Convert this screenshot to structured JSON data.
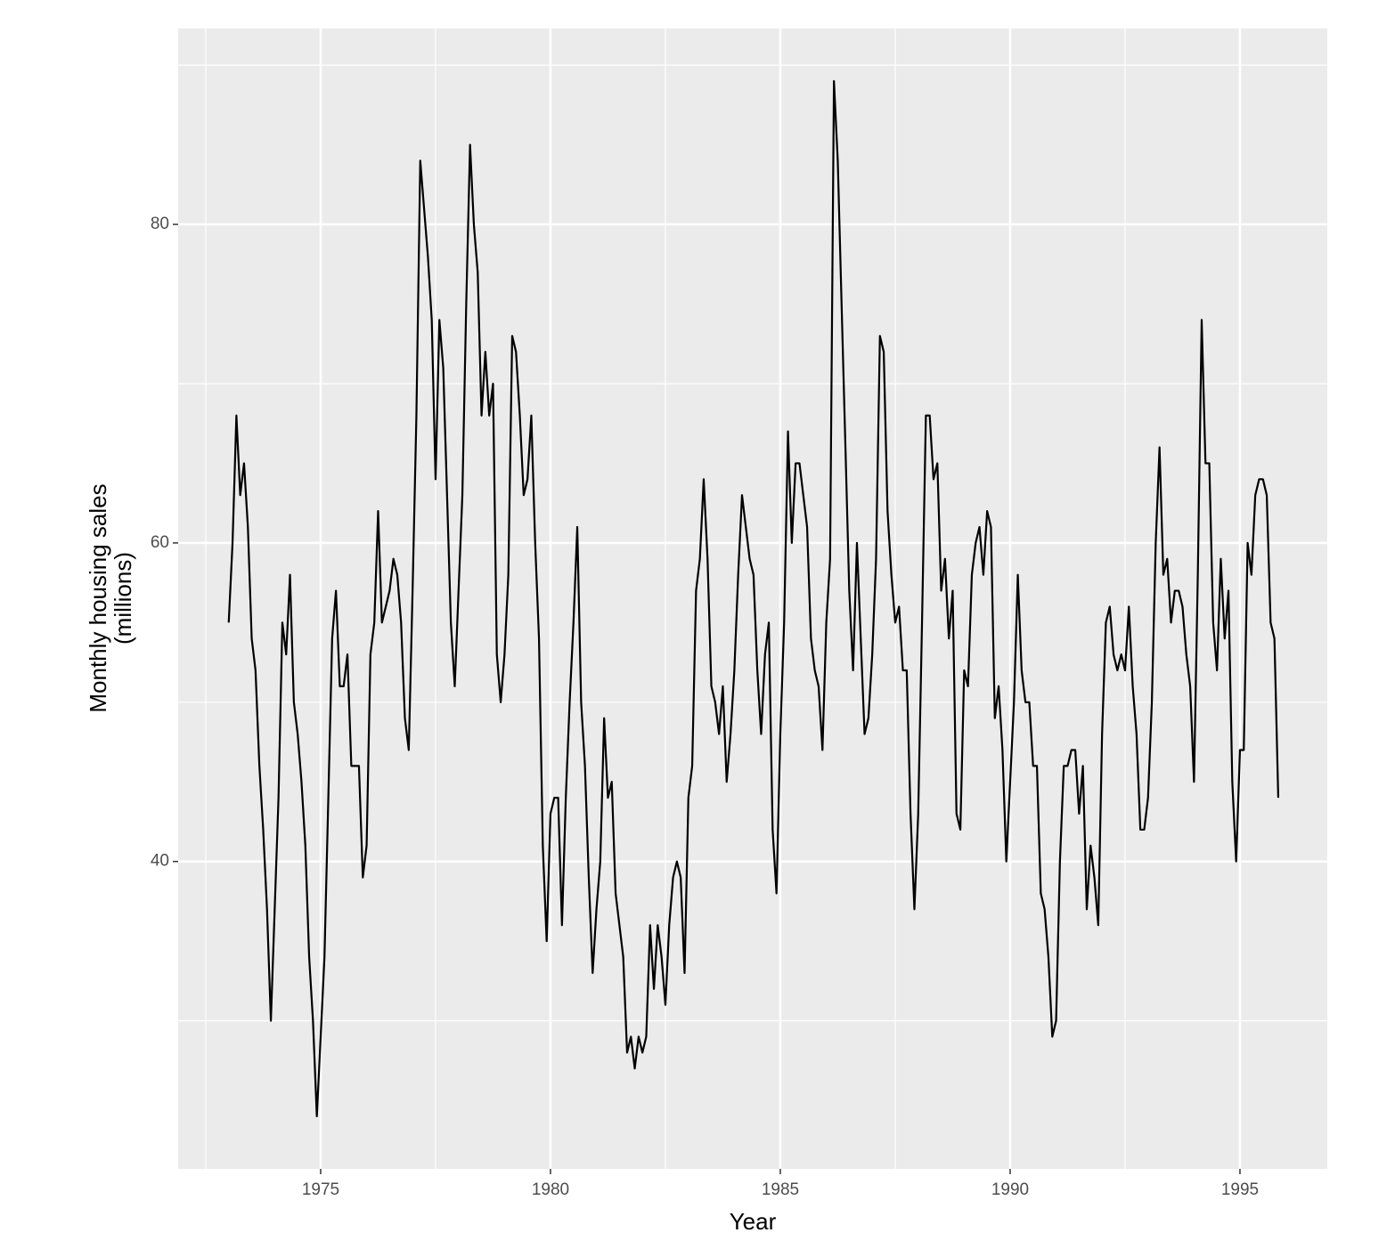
{
  "chart_data": {
    "type": "line",
    "xlabel": "Year",
    "ylabel": [
      "Monthly housing sales",
      "(millions)"
    ],
    "xlim": [
      1971.9,
      1996.9
    ],
    "ylim": [
      20.7,
      92.3
    ],
    "xticks": [
      1975,
      1980,
      1985,
      1990,
      1995
    ],
    "yticks": [
      40,
      60,
      80
    ],
    "xminor": [
      1972.5,
      1977.5,
      1982.5,
      1987.5,
      1992.5
    ],
    "yminor": [
      30,
      50,
      70,
      90
    ],
    "grid": true,
    "x": [
      1973.0,
      1973.083,
      1973.167,
      1973.25,
      1973.333,
      1973.417,
      1973.5,
      1973.583,
      1973.667,
      1973.75,
      1973.833,
      1973.917,
      1974.0,
      1974.083,
      1974.167,
      1974.25,
      1974.333,
      1974.417,
      1974.5,
      1974.583,
      1974.667,
      1974.75,
      1974.833,
      1974.917,
      1975.0,
      1975.083,
      1975.167,
      1975.25,
      1975.333,
      1975.417,
      1975.5,
      1975.583,
      1975.667,
      1975.75,
      1975.833,
      1975.917,
      1976.0,
      1976.083,
      1976.167,
      1976.25,
      1976.333,
      1976.417,
      1976.5,
      1976.583,
      1976.667,
      1976.75,
      1976.833,
      1976.917,
      1977.0,
      1977.083,
      1977.167,
      1977.25,
      1977.333,
      1977.417,
      1977.5,
      1977.583,
      1977.667,
      1977.75,
      1977.833,
      1977.917,
      1978.0,
      1978.083,
      1978.167,
      1978.25,
      1978.333,
      1978.417,
      1978.5,
      1978.583,
      1978.667,
      1978.75,
      1978.833,
      1978.917,
      1979.0,
      1979.083,
      1979.167,
      1979.25,
      1979.333,
      1979.417,
      1979.5,
      1979.583,
      1979.667,
      1979.75,
      1979.833,
      1979.917,
      1980.0,
      1980.083,
      1980.167,
      1980.25,
      1980.333,
      1980.417,
      1980.5,
      1980.583,
      1980.667,
      1980.75,
      1980.833,
      1980.917,
      1981.0,
      1981.083,
      1981.167,
      1981.25,
      1981.333,
      1981.417,
      1981.5,
      1981.583,
      1981.667,
      1981.75,
      1981.833,
      1981.917,
      1982.0,
      1982.083,
      1982.167,
      1982.25,
      1982.333,
      1982.417,
      1982.5,
      1982.583,
      1982.667,
      1982.75,
      1982.833,
      1982.917,
      1983.0,
      1983.083,
      1983.167,
      1983.25,
      1983.333,
      1983.417,
      1983.5,
      1983.583,
      1983.667,
      1983.75,
      1983.833,
      1983.917,
      1984.0,
      1984.083,
      1984.167,
      1984.25,
      1984.333,
      1984.417,
      1984.5,
      1984.583,
      1984.667,
      1984.75,
      1984.833,
      1984.917,
      1985.0,
      1985.083,
      1985.167,
      1985.25,
      1985.333,
      1985.417,
      1985.5,
      1985.583,
      1985.667,
      1985.75,
      1985.833,
      1985.917,
      1986.0,
      1986.083,
      1986.167,
      1986.25,
      1986.333,
      1986.417,
      1986.5,
      1986.583,
      1986.667,
      1986.75,
      1986.833,
      1986.917,
      1987.0,
      1987.083,
      1987.167,
      1987.25,
      1987.333,
      1987.417,
      1987.5,
      1987.583,
      1987.667,
      1987.75,
      1987.833,
      1987.917,
      1988.0,
      1988.083,
      1988.167,
      1988.25,
      1988.333,
      1988.417,
      1988.5,
      1988.583,
      1988.667,
      1988.75,
      1988.833,
      1988.917,
      1989.0,
      1989.083,
      1989.167,
      1989.25,
      1989.333,
      1989.417,
      1989.5,
      1989.583,
      1989.667,
      1989.75,
      1989.833,
      1989.917,
      1990.0,
      1990.083,
      1990.167,
      1990.25,
      1990.333,
      1990.417,
      1990.5,
      1990.583,
      1990.667,
      1990.75,
      1990.833,
      1990.917,
      1991.0,
      1991.083,
      1991.167,
      1991.25,
      1991.333,
      1991.417,
      1991.5,
      1991.583,
      1991.667,
      1991.75,
      1991.833,
      1991.917,
      1992.0,
      1992.083,
      1992.167,
      1992.25,
      1992.333,
      1992.417,
      1992.5,
      1992.583,
      1992.667,
      1992.75,
      1992.833,
      1992.917,
      1993.0,
      1993.083,
      1993.167,
      1993.25,
      1993.333,
      1993.417,
      1993.5,
      1993.583,
      1993.667,
      1993.75,
      1993.833,
      1993.917,
      1994.0,
      1994.083,
      1994.167,
      1994.25,
      1994.333,
      1994.417,
      1994.5,
      1994.583,
      1994.667,
      1994.75,
      1994.833,
      1994.917,
      1995.0,
      1995.083,
      1995.167,
      1995.25,
      1995.333,
      1995.417,
      1995.5,
      1995.583,
      1995.667,
      1995.75,
      1995.833
    ],
    "series": [
      {
        "color": "#000000",
        "values": [
          55,
          60,
          68,
          63,
          65,
          61,
          54,
          52,
          46,
          42,
          37,
          30,
          37,
          44,
          55,
          53,
          58,
          50,
          48,
          45,
          41,
          34,
          30,
          24,
          29,
          34,
          44,
          54,
          57,
          51,
          51,
          53,
          46,
          46,
          46,
          39,
          41,
          53,
          55,
          62,
          55,
          56,
          57,
          59,
          58,
          55,
          49,
          47,
          57,
          68,
          84,
          81,
          78,
          74,
          64,
          74,
          71,
          63,
          55,
          51,
          57,
          63,
          75,
          85,
          80,
          77,
          68,
          72,
          68,
          70,
          53,
          50,
          53,
          58,
          73,
          72,
          68,
          63,
          64,
          68,
          60,
          54,
          41,
          35,
          43,
          44,
          44,
          36,
          44,
          50,
          55,
          61,
          50,
          46,
          39,
          33,
          37,
          40,
          49,
          44,
          45,
          38,
          36,
          34,
          28,
          29,
          27,
          29,
          28,
          29,
          36,
          32,
          36,
          34,
          31,
          36,
          39,
          40,
          39,
          33,
          44,
          46,
          57,
          59,
          64,
          59,
          51,
          50,
          48,
          51,
          45,
          48,
          52,
          58,
          63,
          61,
          59,
          58,
          52,
          48,
          53,
          55,
          42,
          38,
          48,
          55,
          67,
          60,
          65,
          65,
          63,
          61,
          54,
          52,
          51,
          47,
          55,
          59,
          89,
          84,
          75,
          66,
          57,
          52,
          60,
          54,
          48,
          49,
          53,
          59,
          73,
          72,
          62,
          58,
          55,
          56,
          52,
          52,
          43,
          37,
          43,
          55,
          68,
          68,
          64,
          65,
          57,
          59,
          54,
          57,
          43,
          42,
          52,
          51,
          58,
          60,
          61,
          58,
          62,
          61,
          49,
          51,
          47,
          40,
          45,
          50,
          58,
          52,
          50,
          50,
          46,
          46,
          38,
          37,
          34,
          29,
          30,
          40,
          46,
          46,
          47,
          47,
          43,
          46,
          37,
          41,
          39,
          36,
          48,
          55,
          56,
          53,
          52,
          53,
          52,
          56,
          51,
          48,
          42,
          42,
          44,
          50,
          60,
          66,
          58,
          59,
          55,
          57,
          57,
          56,
          53,
          51,
          45,
          58,
          74,
          65,
          65,
          55,
          52,
          59,
          54,
          57,
          45,
          40,
          47,
          47,
          60,
          58,
          63,
          64,
          64,
          63,
          55,
          54,
          44
        ]
      }
    ]
  }
}
